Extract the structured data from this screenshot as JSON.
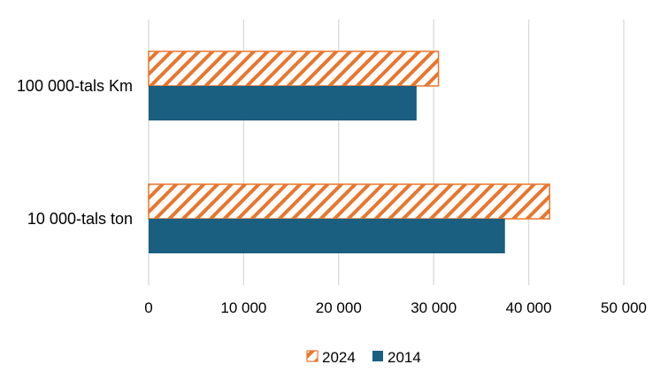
{
  "chart_data": {
    "type": "bar",
    "orientation": "horizontal",
    "title": "",
    "xlabel": "",
    "ylabel": "",
    "categories": [
      "100 000-tals Km",
      "10 000-tals ton"
    ],
    "series": [
      {
        "name": "2024",
        "values": [
          30500,
          42200
        ],
        "color": "#E8762D",
        "pattern": "diagonal-hatch"
      },
      {
        "name": "2014",
        "values": [
          28200,
          37500
        ],
        "color": "#1A5E80",
        "pattern": "solid"
      }
    ],
    "xlim": [
      0,
      50000
    ],
    "xticks": [
      0,
      10000,
      20000,
      30000,
      40000,
      50000
    ],
    "xtick_labels": [
      "0",
      "10 000",
      "20 000",
      "30 000",
      "40 000",
      "50 000"
    ],
    "grid": "vertical",
    "legend": {
      "position": "bottom",
      "entries": [
        "2024",
        "2014"
      ]
    }
  }
}
